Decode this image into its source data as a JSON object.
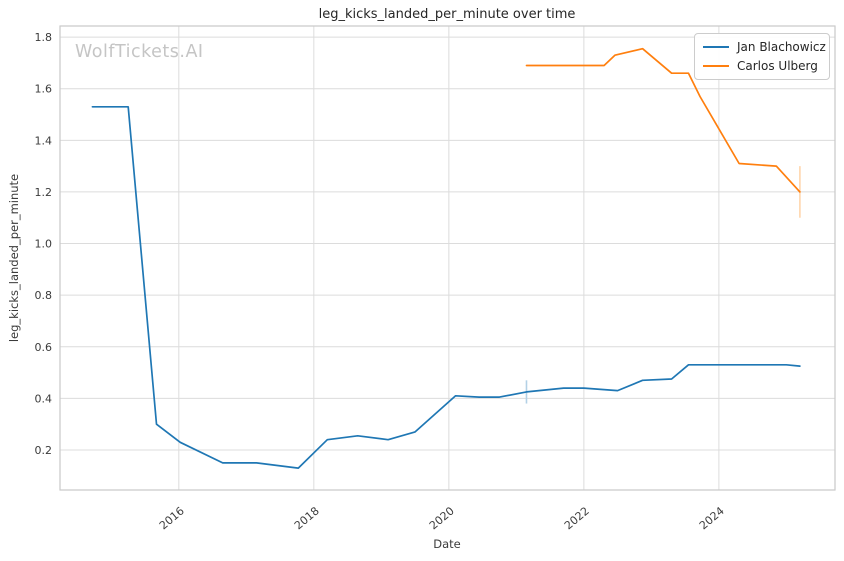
{
  "header": {
    "title": "leg_kicks_landed_per_minute over time",
    "watermark": "WolfTickets.AI"
  },
  "chart_data": {
    "type": "line",
    "title": "leg_kicks_landed_per_minute over time",
    "xlabel": "Date",
    "ylabel": "leg_kicks_landed_per_minute",
    "xlim": [
      2014.24,
      2025.72
    ],
    "ylim": [
      0.045,
      1.843
    ],
    "grid": true,
    "legend_position": "upper right",
    "x_ticks": [
      2016,
      2018,
      2020,
      2022,
      2024
    ],
    "x_tick_labels": [
      "2016",
      "2018",
      "2020",
      "2022",
      "2024"
    ],
    "y_ticks": [
      0.2,
      0.4,
      0.6,
      0.8,
      1.0,
      1.2,
      1.4,
      1.6,
      1.8
    ],
    "y_tick_labels": [
      "0.2",
      "0.4",
      "0.6",
      "0.8",
      "1.0",
      "1.2",
      "1.4",
      "1.6",
      "1.8"
    ],
    "series": [
      {
        "name": "Jan Blachowicz",
        "color": "#1f77b4",
        "ci_color": "#b3d1e6",
        "x": [
          2014.72,
          2015.25,
          2015.67,
          2016.02,
          2016.65,
          2017.15,
          2017.77,
          2018.2,
          2018.65,
          2019.1,
          2019.5,
          2020.1,
          2020.45,
          2020.75,
          2021.15,
          2021.7,
          2022.0,
          2022.5,
          2022.87,
          2023.3,
          2023.55,
          2024.0,
          2024.5,
          2025.0,
          2025.2
        ],
        "y": [
          1.53,
          1.53,
          0.3,
          0.23,
          0.15,
          0.15,
          0.13,
          0.24,
          0.255,
          0.24,
          0.27,
          0.41,
          0.405,
          0.405,
          0.425,
          0.44,
          0.44,
          0.43,
          0.47,
          0.475,
          0.53,
          0.53,
          0.53,
          0.53,
          0.525
        ],
        "error_bars": [
          {
            "x": 2021.15,
            "y": 0.425,
            "lo": 0.38,
            "hi": 0.47
          }
        ]
      },
      {
        "name": "Carlos Ulberg",
        "color": "#ff7f0e",
        "ci_color": "#ffd6ad",
        "x": [
          2021.15,
          2022.3,
          2022.46,
          2022.87,
          2023.3,
          2023.55,
          2023.72,
          2024.3,
          2024.85,
          2025.2
        ],
        "y": [
          1.69,
          1.69,
          1.73,
          1.755,
          1.66,
          1.66,
          1.57,
          1.31,
          1.3,
          1.2
        ],
        "error_bars": [
          {
            "x": 2025.2,
            "y": 1.2,
            "lo": 1.1,
            "hi": 1.3
          }
        ]
      }
    ],
    "style": {
      "grid_color": "#dcdcdc",
      "spine_color": "#c9c9c9",
      "background": "#ffffff"
    }
  },
  "legend": {
    "items": [
      {
        "label": "Jan Blachowicz"
      },
      {
        "label": "Carlos Ulberg"
      }
    ]
  }
}
